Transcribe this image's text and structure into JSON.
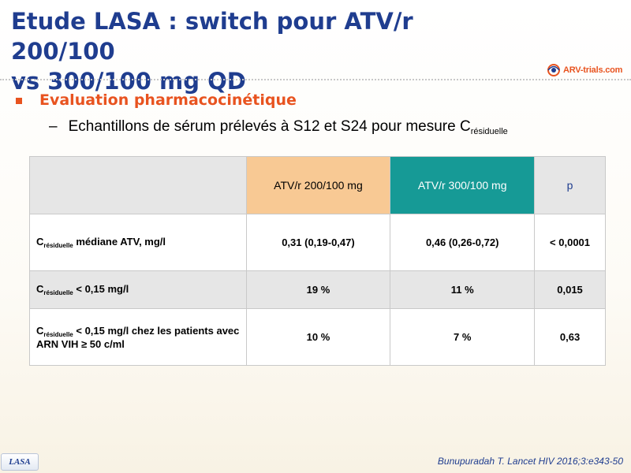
{
  "title": {
    "line1": "Etude LASA : switch pour ATV/r 200/100",
    "line2": "vs 300/100 mg QD"
  },
  "logo": {
    "text": "ARV-trials.com",
    "color": "#e8531f"
  },
  "bullet": {
    "text": "Evaluation pharmacocinétique"
  },
  "subbullet": {
    "dash": "–",
    "text": "Echantillons de sérum prélevés à S12 et S24 pour mesure C",
    "subscript": "résiduelle"
  },
  "table": {
    "headers": [
      "",
      "ATV/r 200/100 mg",
      "ATV/r 300/100 mg",
      "p"
    ],
    "rows": [
      {
        "c": "C",
        "sub": "résiduelle",
        "label": "  médiane ATV, mg/l",
        "v1": "0,31 (0,19-0,47)",
        "v2": "0,46 (0,26-0,72)",
        "p": "< 0,0001"
      },
      {
        "c": "C",
        "sub": "résiduelle",
        "label": " < 0,15 mg/l",
        "v1": "19 %",
        "v2": "11 %",
        "p": "0,015"
      },
      {
        "c": "C",
        "sub": "résiduelle",
        "label": " < 0,15 mg/l chez les patients avec ARN VIH ≥ 50 c/ml",
        "v1": "10 %",
        "v2": "7 %",
        "p": "0,63"
      }
    ]
  },
  "footer": {
    "badge": "LASA",
    "reference": "Bunupuradah T. Lancet HIV 2016;3:e343-50"
  },
  "colors": {
    "title": "#1f3d8f",
    "accent": "#e8531f",
    "header_200": "#f8c994",
    "header_300": "#169a96",
    "shade": "#e6e6e6"
  }
}
